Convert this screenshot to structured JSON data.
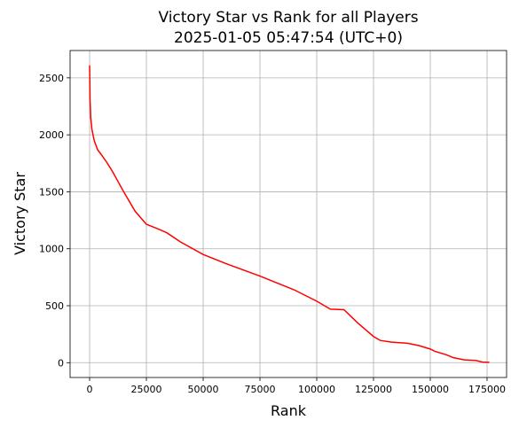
{
  "chart_data": {
    "type": "line",
    "title": "Victory Star vs Rank for all Players",
    "subtitle": "2025-01-05 05:47:54 (UTC+0)",
    "x_label": "Rank",
    "y_label": "Victory Star",
    "x": [
      1,
      200,
      500,
      1000,
      2000,
      3500,
      5000,
      7500,
      10000,
      15000,
      20000,
      25000,
      30000,
      34000,
      40000,
      50000,
      60000,
      75000,
      90000,
      100000,
      106000,
      112000,
      118000,
      125000,
      128000,
      133000,
      140000,
      145000,
      150000,
      152000,
      157000,
      160000,
      165000,
      170000,
      173000,
      176000
    ],
    "series": [
      {
        "name": "Victory Star",
        "color": "#ff0000",
        "values": [
          2610,
          2300,
          2150,
          2050,
          1950,
          1870,
          1830,
          1760,
          1680,
          1500,
          1330,
          1215,
          1175,
          1140,
          1060,
          950,
          870,
          760,
          640,
          540,
          470,
          465,
          350,
          230,
          195,
          180,
          170,
          150,
          120,
          100,
          70,
          45,
          25,
          20,
          5,
          3
        ]
      }
    ],
    "xlim": [
      -8600,
      183600
    ],
    "xticks": [
      0,
      25000,
      50000,
      75000,
      100000,
      125000,
      150000,
      175000
    ],
    "ylim": [
      -130,
      2740
    ],
    "yticks": [
      0,
      500,
      1000,
      1500,
      2000,
      2500
    ],
    "grid": true
  }
}
